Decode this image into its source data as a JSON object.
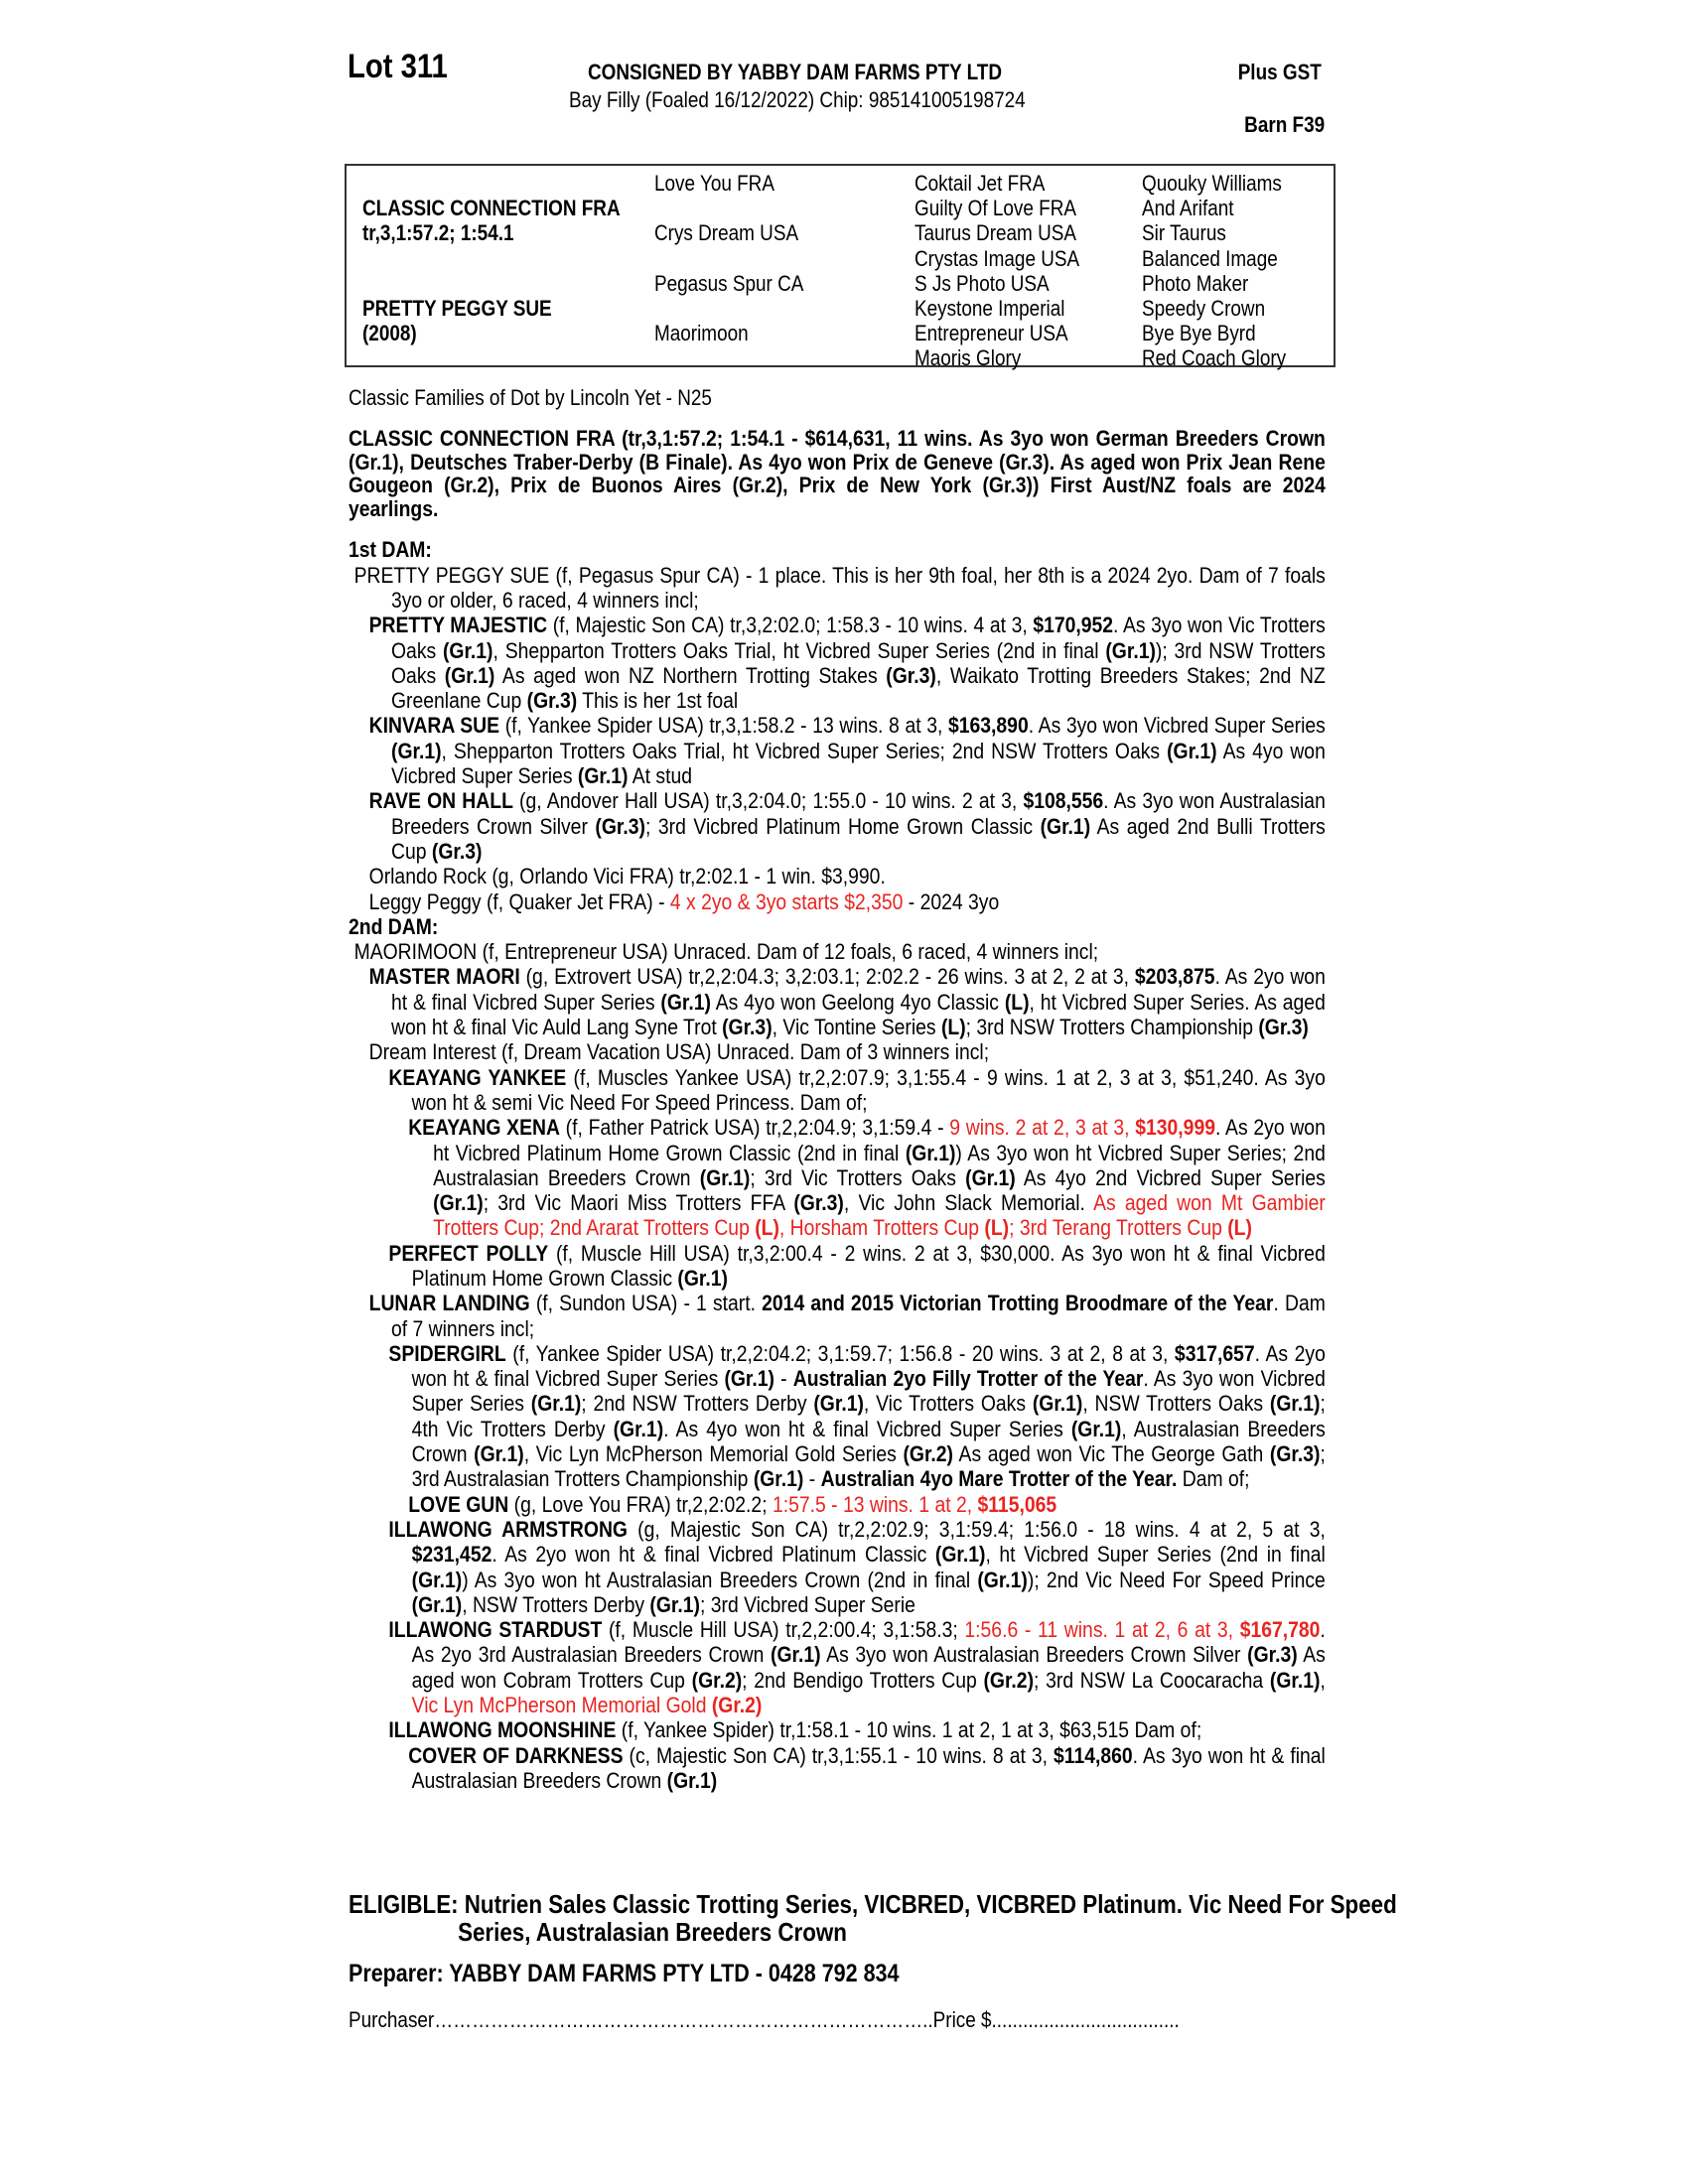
{
  "header": {
    "lot": "Lot 311",
    "consigned": "CONSIGNED BY YABBY DAM FARMS PTY LTD",
    "description": "Bay Filly (Foaled  16/12/2022) Chip: 985141005198724",
    "gst": "Plus GST",
    "barn": "Barn F39"
  },
  "pedigree": {
    "sire": "CLASSIC CONNECTION FRA",
    "sire_record": "tr,3,1:57.2; 1:54.1",
    "dam": "PRETTY PEGGY SUE",
    "dam_year": "(2008)",
    "gen2": [
      "Love You FRA",
      "Crys Dream USA",
      "Pegasus Spur CA",
      "Maorimoon"
    ],
    "gen3": [
      "Coktail Jet FRA",
      "Guilty Of Love FRA",
      "Taurus Dream USA",
      "Crystas Image USA",
      "S Js Photo USA",
      "Keystone Imperial",
      "Entrepreneur USA",
      "Maoris Glory"
    ],
    "gen4": [
      "Quouky Williams",
      "And Arifant",
      "Sir Taurus",
      "Balanced Image",
      "Photo Maker",
      "Speedy Crown",
      "Bye Bye Byrd",
      "Red Coach Glory"
    ]
  },
  "family": "Classic Families of Dot by Lincoln Yet - N25",
  "stallion_note": "CLASSIC CONNECTION FRA (tr,3,1:57.2; 1:54.1 - $614,631, 11 wins. As 3yo won German Breeders Crown (Gr.1), Deutsches Traber-Derby (B Finale). As 4yo won Prix de Geneve (Gr.3). As aged won Prix Jean Rene Gougeon (Gr.2), Prix de Buonos Aires (Gr.2), Prix de New York (Gr.3)) First Aust/NZ foals are 2024 yearlings.",
  "dams": [
    {
      "heading": "1st DAM:",
      "entries": [
        {
          "level": 0,
          "seg": [
            {
              "s": "",
              "t": "PRETTY PEGGY SUE (f, Pegasus Spur CA) - 1 place. This is her 9th foal, her 8th is a 2024 2yo. Dam of 7 foals 3yo or older, 6 raced, 4 winners incl;"
            }
          ]
        },
        {
          "level": 1,
          "seg": [
            {
              "s": "b",
              "t": "PRETTY MAJESTIC"
            },
            {
              "s": "",
              "t": " (f, Majestic Son CA) tr,3,2:02.0; 1:58.3 - 10 wins. 4 at 3, "
            },
            {
              "s": "b",
              "t": "$170,952"
            },
            {
              "s": "",
              "t": ". As 3yo won Vic Trotters Oaks "
            },
            {
              "s": "b",
              "t": "(Gr.1)"
            },
            {
              "s": "",
              "t": ", Shepparton Trotters Oaks Trial, ht Vicbred Super Series (2nd in final "
            },
            {
              "s": "b",
              "t": "(Gr.1)"
            },
            {
              "s": "",
              "t": "); 3rd NSW Trotters Oaks "
            },
            {
              "s": "b",
              "t": "(Gr.1)"
            },
            {
              "s": "",
              "t": " As aged won NZ Northern Trotting Stakes "
            },
            {
              "s": "b",
              "t": "(Gr.3)"
            },
            {
              "s": "",
              "t": ", Waikato Trotting Breeders Stakes; 2nd NZ Greenlane Cup "
            },
            {
              "s": "b",
              "t": "(Gr.3)"
            },
            {
              "s": "",
              "t": " This is her 1st foal"
            }
          ]
        },
        {
          "level": 1,
          "seg": [
            {
              "s": "b",
              "t": "KINVARA SUE"
            },
            {
              "s": "",
              "t": " (f, Yankee Spider USA) tr,3,1:58.2 - 13 wins. 8 at 3, "
            },
            {
              "s": "b",
              "t": "$163,890"
            },
            {
              "s": "",
              "t": ". As 3yo won Vicbred Super Series "
            },
            {
              "s": "b",
              "t": "(Gr.1)"
            },
            {
              "s": "",
              "t": ", Shepparton Trotters Oaks Trial, ht Vicbred Super Series; 2nd NSW Trotters Oaks "
            },
            {
              "s": "b",
              "t": "(Gr.1)"
            },
            {
              "s": "",
              "t": " As 4yo won Vicbred Super Series "
            },
            {
              "s": "b",
              "t": "(Gr.1)"
            },
            {
              "s": "",
              "t": " At stud"
            }
          ]
        },
        {
          "level": 1,
          "seg": [
            {
              "s": "b",
              "t": "RAVE ON HALL"
            },
            {
              "s": "",
              "t": " (g, Andover Hall USA) tr,3,2:04.0; 1:55.0 - 10 wins. 2 at 3, "
            },
            {
              "s": "b",
              "t": "$108,556"
            },
            {
              "s": "",
              "t": ". As 3yo won Australasian Breeders Crown Silver "
            },
            {
              "s": "b",
              "t": "(Gr.3)"
            },
            {
              "s": "",
              "t": "; 3rd Vicbred Platinum Home Grown Classic "
            },
            {
              "s": "b",
              "t": "(Gr.1)"
            },
            {
              "s": "",
              "t": " As aged 2nd Bulli Trotters Cup "
            },
            {
              "s": "b",
              "t": "(Gr.3)"
            }
          ]
        },
        {
          "level": 1,
          "seg": [
            {
              "s": "",
              "t": "Orlando Rock (g, Orlando Vici FRA) tr,2:02.1 - 1 win. $3,990."
            }
          ]
        },
        {
          "level": 1,
          "seg": [
            {
              "s": "",
              "t": "Leggy Peggy (f, Quaker Jet FRA) - "
            },
            {
              "s": "r",
              "t": "4 x 2yo & 3yo starts $2,350"
            },
            {
              "s": "",
              "t": " - 2024 3yo"
            }
          ]
        }
      ]
    },
    {
      "heading": "2nd DAM:",
      "entries": [
        {
          "level": 0,
          "seg": [
            {
              "s": "",
              "t": "MAORIMOON (f, Entrepreneur USA) Unraced. Dam of 12 foals, 6 raced, 4 winners incl;"
            }
          ]
        },
        {
          "level": 1,
          "seg": [
            {
              "s": "b",
              "t": "MASTER MAORI"
            },
            {
              "s": "",
              "t": " (g, Extrovert USA) tr,2,2:04.3; 3,2:03.1; 2:02.2 - 26 wins. 3 at 2, 2 at 3, "
            },
            {
              "s": "b",
              "t": "$203,875"
            },
            {
              "s": "",
              "t": ". As 2yo won ht & final Vicbred Super Series "
            },
            {
              "s": "b",
              "t": "(Gr.1)"
            },
            {
              "s": "",
              "t": " As 4yo won Geelong 4yo Classic "
            },
            {
              "s": "b",
              "t": "(L)"
            },
            {
              "s": "",
              "t": ", ht Vicbred Super Series. As aged won ht & final Vic Auld Lang Syne Trot "
            },
            {
              "s": "b",
              "t": "(Gr.3)"
            },
            {
              "s": "",
              "t": ", Vic Tontine Series "
            },
            {
              "s": "b",
              "t": "(L)"
            },
            {
              "s": "",
              "t": "; 3rd NSW Trotters Championship "
            },
            {
              "s": "b",
              "t": "(Gr.3)"
            }
          ]
        },
        {
          "level": 1,
          "seg": [
            {
              "s": "",
              "t": "Dream Interest (f, Dream Vacation USA) Unraced. Dam of 3 winners incl;"
            }
          ]
        },
        {
          "level": 2,
          "seg": [
            {
              "s": "b",
              "t": "KEAYANG YANKEE"
            },
            {
              "s": "",
              "t": " (f, Muscles Yankee USA) tr,2,2:07.9; 3,1:55.4 - 9 wins. 1 at 2, 3 at 3, $51,240. As 3yo won ht & semi Vic Need For Speed Princess. Dam of;"
            }
          ]
        },
        {
          "level": 3,
          "seg": [
            {
              "s": "b",
              "t": "KEAYANG XENA"
            },
            {
              "s": "",
              "t": " (f, Father Patrick USA) tr,2,2:04.9; 3,1:59.4 - "
            },
            {
              "s": "r",
              "t": "9 wins. 2 at 2, 3 at 3, "
            },
            {
              "s": "rb",
              "t": "$130,999"
            },
            {
              "s": "",
              "t": ". As 2yo won ht Vicbred Platinum Home Grown Classic (2nd in final "
            },
            {
              "s": "b",
              "t": "(Gr.1)"
            },
            {
              "s": "",
              "t": ") As 3yo won ht Vicbred Super Series; 2nd Australasian Breeders Crown "
            },
            {
              "s": "b",
              "t": "(Gr.1)"
            },
            {
              "s": "",
              "t": "; 3rd Vic Trotters Oaks "
            },
            {
              "s": "b",
              "t": "(Gr.1)"
            },
            {
              "s": "",
              "t": " As 4yo 2nd Vicbred Super Series "
            },
            {
              "s": "b",
              "t": "(Gr.1)"
            },
            {
              "s": "",
              "t": "; 3rd Vic Maori Miss Trotters FFA "
            },
            {
              "s": "b",
              "t": "(Gr.3)"
            },
            {
              "s": "",
              "t": ", Vic John Slack Memorial. "
            },
            {
              "s": "r",
              "t": "As aged won Mt Gambier Trotters Cup; 2nd Ararat Trotters Cup "
            },
            {
              "s": "rb",
              "t": "(L)"
            },
            {
              "s": "r",
              "t": ", Horsham Trotters Cup "
            },
            {
              "s": "rb",
              "t": "(L)"
            },
            {
              "s": "r",
              "t": "; 3rd Terang Trotters Cup "
            },
            {
              "s": "rb",
              "t": "(L)"
            }
          ]
        },
        {
          "level": 2,
          "seg": [
            {
              "s": "b",
              "t": "PERFECT POLLY"
            },
            {
              "s": "",
              "t": " (f, Muscle Hill USA) tr,3,2:00.4 - 2 wins. 2 at 3, $30,000. As 3yo won ht & final Vicbred Platinum Home Grown Classic "
            },
            {
              "s": "b",
              "t": "(Gr.1)"
            }
          ]
        },
        {
          "level": 1,
          "seg": [
            {
              "s": "b",
              "t": "LUNAR LANDING"
            },
            {
              "s": "",
              "t": " (f, Sundon USA) - 1 start. "
            },
            {
              "s": "b",
              "t": "2014 and 2015 Victorian Trotting Broodmare of the Year"
            },
            {
              "s": "",
              "t": ". Dam of 7 winners incl;"
            }
          ]
        },
        {
          "level": 2,
          "seg": [
            {
              "s": "b",
              "t": "SPIDERGIRL"
            },
            {
              "s": "",
              "t": " (f, Yankee Spider USA) tr,2,2:04.2; 3,1:59.7; 1:56.8 - 20 wins. 3 at 2, 8 at 3, "
            },
            {
              "s": "b",
              "t": "$317,657"
            },
            {
              "s": "",
              "t": ". As 2yo won ht & final Vicbred Super Series "
            },
            {
              "s": "b",
              "t": "(Gr.1)"
            },
            {
              "s": "",
              "t": " - "
            },
            {
              "s": "b",
              "t": "Australian 2yo Filly Trotter of the Year"
            },
            {
              "s": "",
              "t": ". As 3yo won Vicbred Super Series "
            },
            {
              "s": "b",
              "t": "(Gr.1)"
            },
            {
              "s": "",
              "t": "; 2nd NSW Trotters Derby "
            },
            {
              "s": "b",
              "t": "(Gr.1)"
            },
            {
              "s": "",
              "t": ", Vic Trotters Oaks "
            },
            {
              "s": "b",
              "t": "(Gr.1)"
            },
            {
              "s": "",
              "t": ", NSW Trotters Oaks "
            },
            {
              "s": "b",
              "t": "(Gr.1)"
            },
            {
              "s": "",
              "t": "; 4th Vic Trotters Derby "
            },
            {
              "s": "b",
              "t": "(Gr.1)"
            },
            {
              "s": "",
              "t": ". As 4yo won ht & final Vicbred Super Series "
            },
            {
              "s": "b",
              "t": "(Gr.1)"
            },
            {
              "s": "",
              "t": ", Australasian Breeders Crown "
            },
            {
              "s": "b",
              "t": "(Gr.1)"
            },
            {
              "s": "",
              "t": ", Vic Lyn McPherson Memorial Gold Series "
            },
            {
              "s": "b",
              "t": "(Gr.2)"
            },
            {
              "s": "",
              "t": " As aged won Vic The George Gath "
            },
            {
              "s": "b",
              "t": "(Gr.3)"
            },
            {
              "s": "",
              "t": "; 3rd Australasian Trotters Championship "
            },
            {
              "s": "b",
              "t": "(Gr.1)"
            },
            {
              "s": "",
              "t": " - "
            },
            {
              "s": "b",
              "t": "Australian 4yo Mare Trotter of the Year."
            },
            {
              "s": "",
              "t": " Dam of;"
            }
          ]
        },
        {
          "level": 3,
          "seg": [
            {
              "s": "b",
              "t": "LOVE GUN"
            },
            {
              "s": "",
              "t": " (g, Love You FRA) tr,2,2:02.2; "
            },
            {
              "s": "r",
              "t": "1:57.5 - 13 wins. 1 at 2, "
            },
            {
              "s": "rb",
              "t": "$115,065"
            }
          ]
        },
        {
          "level": 2,
          "seg": [
            {
              "s": "b",
              "t": "ILLAWONG ARMSTRONG"
            },
            {
              "s": "",
              "t": " (g, Majestic Son CA) tr,2,2:02.9; 3,1:59.4; 1:56.0 - 18 wins. 4 at 2, 5 at 3, "
            },
            {
              "s": "b",
              "t": "$231,452"
            },
            {
              "s": "",
              "t": ". As 2yo won ht & final Vicbred Platinum Classic "
            },
            {
              "s": "b",
              "t": "(Gr.1)"
            },
            {
              "s": "",
              "t": ", ht Vicbred Super Series (2nd in final "
            },
            {
              "s": "b",
              "t": "(Gr.1)"
            },
            {
              "s": "",
              "t": ") As 3yo won ht Australasian Breeders Crown (2nd in final "
            },
            {
              "s": "b",
              "t": "(Gr.1)"
            },
            {
              "s": "",
              "t": "); 2nd Vic Need For Speed Prince "
            },
            {
              "s": "b",
              "t": "(Gr.1)"
            },
            {
              "s": "",
              "t": ", NSW Trotters Derby "
            },
            {
              "s": "b",
              "t": "(Gr.1)"
            },
            {
              "s": "",
              "t": "; 3rd Vicbred Super Serie"
            }
          ]
        },
        {
          "level": 2,
          "seg": [
            {
              "s": "b",
              "t": "ILLAWONG STARDUST"
            },
            {
              "s": "",
              "t": " (f, Muscle Hill USA) tr,2,2:00.4; 3,1:58.3; "
            },
            {
              "s": "r",
              "t": "1:56.6 - 11 wins. 1 at 2, 6 at 3, "
            },
            {
              "s": "rb",
              "t": "$167,780"
            },
            {
              "s": "",
              "t": ". As 2yo 3rd Australasian Breeders Crown "
            },
            {
              "s": "b",
              "t": "(Gr.1)"
            },
            {
              "s": "",
              "t": " As 3yo won Australasian Breeders Crown Silver "
            },
            {
              "s": "b",
              "t": "(Gr.3)"
            },
            {
              "s": "",
              "t": " As aged won Cobram Trotters Cup "
            },
            {
              "s": "b",
              "t": "(Gr.2)"
            },
            {
              "s": "",
              "t": "; 2nd Bendigo Trotters Cup "
            },
            {
              "s": "b",
              "t": "(Gr.2)"
            },
            {
              "s": "",
              "t": "; 3rd NSW La Coocaracha "
            },
            {
              "s": "b",
              "t": "(Gr.1)"
            },
            {
              "s": "",
              "t": ", "
            },
            {
              "s": "r",
              "t": "Vic Lyn McPherson Memorial Gold "
            },
            {
              "s": "rb",
              "t": "(Gr.2)"
            }
          ]
        },
        {
          "level": 2,
          "seg": [
            {
              "s": "b",
              "t": "ILLAWONG MOONSHINE"
            },
            {
              "s": "",
              "t": " (f, Yankee Spider) tr,1:58.1 - 10 wins. 1 at 2, 1 at 3, $63,515 Dam of;"
            }
          ]
        },
        {
          "level": 3,
          "seg": [
            {
              "s": "b",
              "t": "COVER OF DARKNESS"
            },
            {
              "s": "",
              "t": " (c, Majestic Son CA) tr,3,1:55.1 - 10 wins. 8 at 3, "
            },
            {
              "s": "b",
              "t": "$114,860"
            },
            {
              "s": "",
              "t": ". As 3yo won ht & final Australasian Breeders Crown "
            },
            {
              "s": "b",
              "t": "(Gr.1)"
            }
          ]
        }
      ]
    }
  ],
  "eligible": "ELIGIBLE: Nutrien Sales Classic Trotting Series, VICBRED, VICBRED Platinum. Vic Need For Speed Series, Australasian Breeders Crown",
  "preparer": "Preparer: YABBY DAM FARMS PTY LTD - 0428 792 834",
  "purchaser": "Purchaser……………………………………………………………………..Price $....................................",
  "colors": {
    "highlight": "#e82420",
    "text": "#000000",
    "border": "#333333"
  }
}
